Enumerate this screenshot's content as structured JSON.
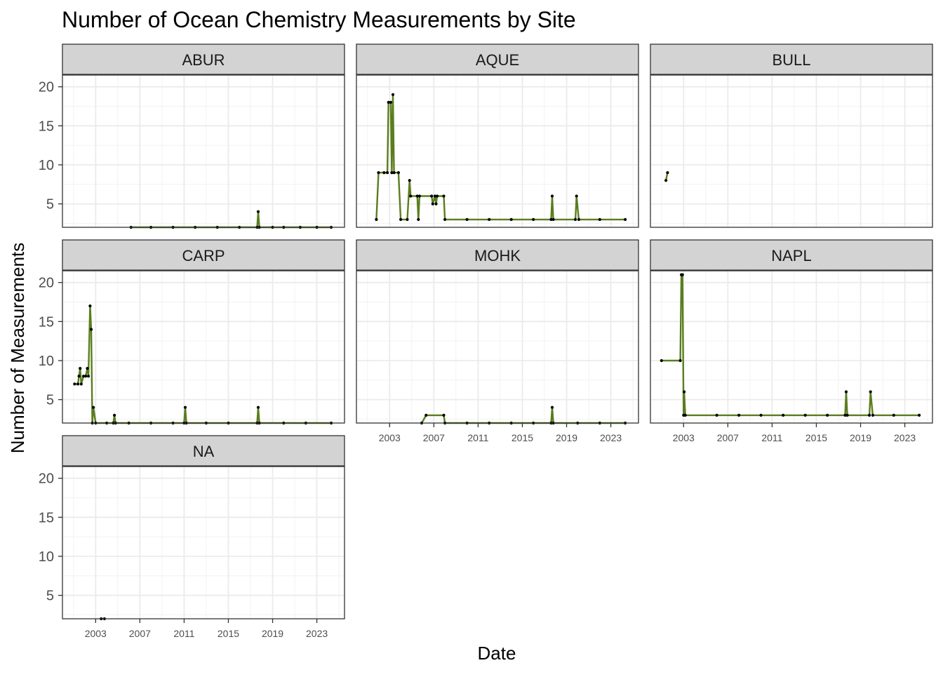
{
  "chart_data": {
    "type": "line",
    "title": "Number of Ocean Chemistry Measurements by Site",
    "xlabel": "Date",
    "ylabel": "Number of Measurements",
    "xlim": [
      2000.0,
      2025.5
    ],
    "ylim": [
      2.0,
      21.5
    ],
    "x_ticks": [
      2003,
      2007,
      2011,
      2015,
      2019,
      2023
    ],
    "x_tick_labels": [
      "2003",
      "2007",
      "2011",
      "2015",
      "2019",
      "2023"
    ],
    "y_ticks": [
      5,
      10,
      15,
      20
    ],
    "y_tick_labels": [
      "5",
      "10",
      "15",
      "20"
    ],
    "grid": true,
    "line_color": "#5a7d1e",
    "point_color": "#000000",
    "strip_fill": "#d3d3d3",
    "facets": [
      {
        "label": "ABUR",
        "points": [
          [
            2006.2,
            2
          ],
          [
            2008.0,
            2
          ],
          [
            2010.0,
            2
          ],
          [
            2012.0,
            2
          ],
          [
            2014.0,
            2
          ],
          [
            2016.0,
            2
          ],
          [
            2017.6,
            2
          ],
          [
            2017.7,
            4
          ],
          [
            2017.8,
            2
          ],
          [
            2019.0,
            2
          ],
          [
            2020.0,
            2
          ],
          [
            2021.5,
            2
          ],
          [
            2023.0,
            2
          ],
          [
            2024.3,
            2
          ]
        ]
      },
      {
        "label": "AQUE",
        "points": [
          [
            2001.8,
            3
          ],
          [
            2002.0,
            9
          ],
          [
            2002.5,
            9
          ],
          [
            2002.8,
            9
          ],
          [
            2002.9,
            18
          ],
          [
            2003.1,
            18
          ],
          [
            2003.2,
            9
          ],
          [
            2003.3,
            19
          ],
          [
            2003.4,
            9
          ],
          [
            2003.8,
            9
          ],
          [
            2004.0,
            3
          ],
          [
            2004.6,
            3
          ],
          [
            2004.8,
            8
          ],
          [
            2004.9,
            6
          ],
          [
            2005.5,
            6
          ],
          [
            2005.6,
            3
          ],
          [
            2005.7,
            6
          ],
          [
            2006.8,
            6
          ],
          [
            2006.9,
            5
          ],
          [
            2007.1,
            6
          ],
          [
            2007.2,
            5
          ],
          [
            2007.3,
            6
          ],
          [
            2007.9,
            6
          ],
          [
            2008.0,
            3
          ],
          [
            2010.0,
            3
          ],
          [
            2012.0,
            3
          ],
          [
            2014.0,
            3
          ],
          [
            2016.0,
            3
          ],
          [
            2017.6,
            3
          ],
          [
            2017.7,
            6
          ],
          [
            2017.8,
            3
          ],
          [
            2019.8,
            3
          ],
          [
            2019.9,
            6
          ],
          [
            2020.1,
            3
          ],
          [
            2022.0,
            3
          ],
          [
            2024.3,
            3
          ]
        ]
      },
      {
        "label": "BULL",
        "points": [
          [
            2001.4,
            8
          ],
          [
            2001.55,
            9
          ]
        ]
      },
      {
        "label": "CARP",
        "points": [
          [
            2001.1,
            7
          ],
          [
            2001.4,
            7
          ],
          [
            2001.5,
            8
          ],
          [
            2001.6,
            9
          ],
          [
            2001.7,
            7
          ],
          [
            2001.9,
            8
          ],
          [
            2002.1,
            8
          ],
          [
            2002.25,
            9
          ],
          [
            2002.35,
            8
          ],
          [
            2002.5,
            17
          ],
          [
            2002.6,
            14
          ],
          [
            2002.7,
            2
          ],
          [
            2002.8,
            4
          ],
          [
            2003.0,
            2
          ],
          [
            2004.0,
            2
          ],
          [
            2004.6,
            2
          ],
          [
            2004.7,
            3
          ],
          [
            2004.8,
            2
          ],
          [
            2006.0,
            2
          ],
          [
            2008.0,
            2
          ],
          [
            2010.0,
            2
          ],
          [
            2011.0,
            2
          ],
          [
            2011.1,
            4
          ],
          [
            2011.2,
            2
          ],
          [
            2013.0,
            2
          ],
          [
            2015.0,
            2
          ],
          [
            2017.6,
            2
          ],
          [
            2017.7,
            4
          ],
          [
            2017.8,
            2
          ],
          [
            2020.0,
            2
          ],
          [
            2022.0,
            2
          ],
          [
            2024.3,
            2
          ]
        ]
      },
      {
        "label": "MOHK",
        "points": [
          [
            2005.9,
            2
          ],
          [
            2006.3,
            3
          ],
          [
            2007.9,
            3
          ],
          [
            2008.0,
            2
          ],
          [
            2010.0,
            2
          ],
          [
            2012.0,
            2
          ],
          [
            2014.0,
            2
          ],
          [
            2016.0,
            2
          ],
          [
            2017.6,
            2
          ],
          [
            2017.7,
            4
          ],
          [
            2017.8,
            2
          ],
          [
            2020.0,
            2
          ],
          [
            2022.0,
            2
          ],
          [
            2024.3,
            2
          ]
        ]
      },
      {
        "label": "NAPL",
        "points": [
          [
            2001.0,
            10
          ],
          [
            2002.7,
            10
          ],
          [
            2002.8,
            21
          ],
          [
            2002.9,
            21
          ],
          [
            2003.0,
            3
          ],
          [
            2003.05,
            6
          ],
          [
            2003.15,
            3
          ],
          [
            2006.0,
            3
          ],
          [
            2008.0,
            3
          ],
          [
            2010.0,
            3
          ],
          [
            2012.0,
            3
          ],
          [
            2014.0,
            3
          ],
          [
            2016.0,
            3
          ],
          [
            2017.6,
            3
          ],
          [
            2017.7,
            6
          ],
          [
            2017.8,
            3
          ],
          [
            2019.8,
            3
          ],
          [
            2019.9,
            6
          ],
          [
            2020.1,
            3
          ],
          [
            2022.0,
            3
          ],
          [
            2024.3,
            3
          ]
        ]
      },
      {
        "label": "NA",
        "points": [
          [
            2003.5,
            2
          ],
          [
            2003.8,
            2
          ]
        ]
      }
    ]
  }
}
